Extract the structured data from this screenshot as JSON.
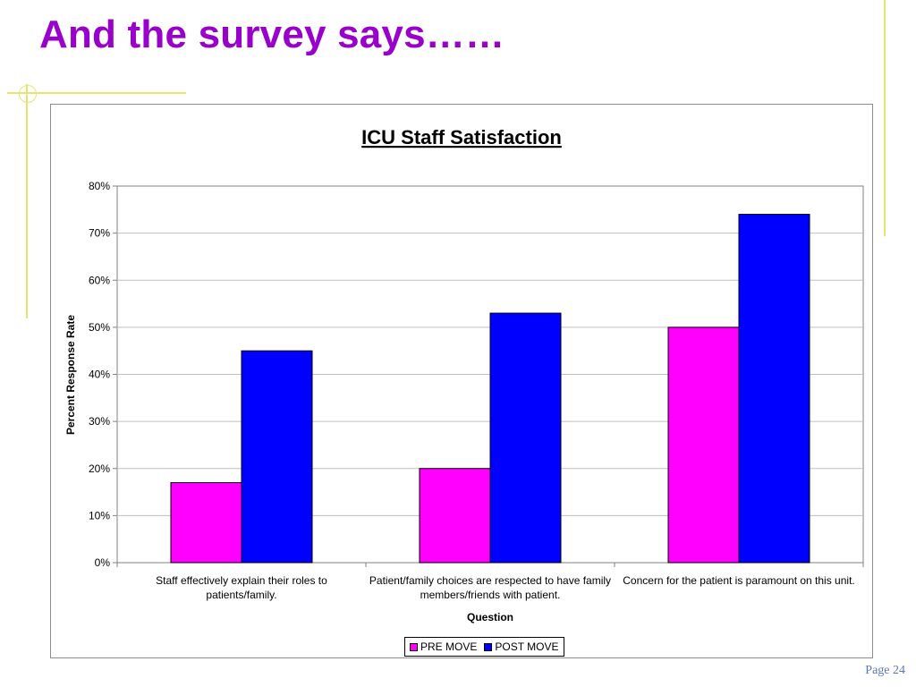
{
  "slide": {
    "title": "And the survey says……",
    "page_number": "Page 24",
    "title_color": "#9900CC",
    "accent_color": "#E6E66F"
  },
  "chart_data": {
    "type": "bar",
    "title": "ICU Staff Satisfaction",
    "xlabel": "Question",
    "ylabel": "Percent Response Rate",
    "ylim": [
      0,
      80
    ],
    "y_ticks": [
      "0%",
      "10%",
      "20%",
      "30%",
      "40%",
      "50%",
      "60%",
      "70%",
      "80%"
    ],
    "categories": [
      "Staff effectively explain their roles to patients/family.",
      "Patient/family choices are respected to have family members/friends with patient.",
      "Concern for the patient is paramount on this unit."
    ],
    "series": [
      {
        "name": "PRE MOVE",
        "color": "#FF00FF",
        "values": [
          17,
          20,
          50
        ]
      },
      {
        "name": "POST MOVE",
        "color": "#0000FF",
        "values": [
          45,
          53,
          74
        ]
      }
    ],
    "grid": true,
    "legend_position": "bottom"
  }
}
